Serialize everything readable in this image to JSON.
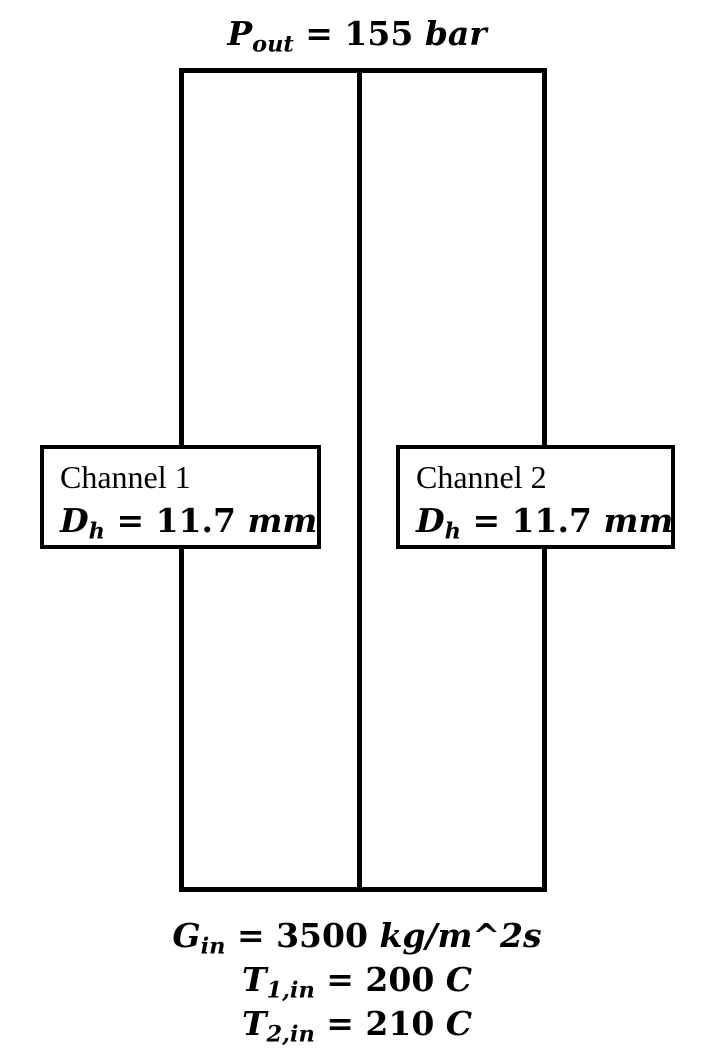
{
  "top": {
    "pressure_symbol": "P",
    "pressure_sub": "out",
    "pressure_value": "= 155",
    "pressure_unit": "bar"
  },
  "channels": [
    {
      "name": "Channel 1",
      "dh_symbol": "D",
      "dh_sub": "h",
      "dh_value": "= 11.7",
      "dh_unit": "mm"
    },
    {
      "name": "Channel 2",
      "dh_symbol": "D",
      "dh_sub": "h",
      "dh_value": "= 11.7",
      "dh_unit": "mm"
    }
  ],
  "inlet": {
    "mass_flux_symbol": "G",
    "mass_flux_sub": "in",
    "mass_flux_value": "= 3500",
    "mass_flux_unit": "kg/m^2s",
    "t1_symbol": "T",
    "t1_sub": "1,in",
    "t1_value": "= 200",
    "t1_unit": "C",
    "t2_symbol": "T",
    "t2_sub": "2,in",
    "t2_value": "= 210",
    "t2_unit": "C"
  }
}
